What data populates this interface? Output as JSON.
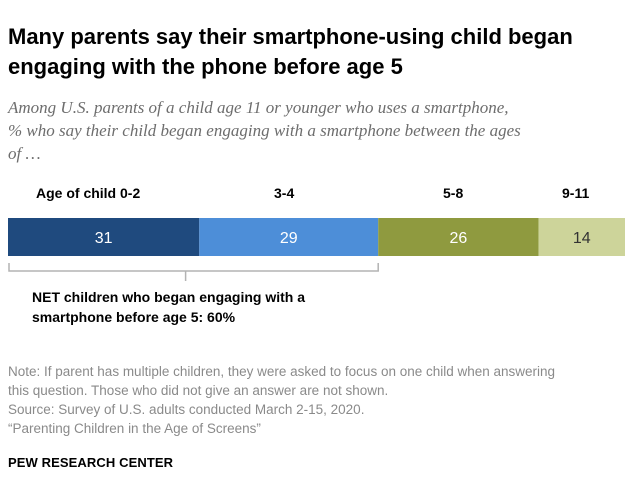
{
  "title_line1": "Many parents say their smartphone-using child began",
  "title_line2": "engaging with the phone before age 5",
  "subtitle_line1": "Among U.S. parents of a child age 11 or younger who uses a smartphone,",
  "subtitle_line2": "% who say their child began engaging with a smartphone between the ages",
  "subtitle_line3": "of …",
  "chart_data": {
    "type": "bar",
    "orientation": "horizontal-stacked",
    "categories": [
      "Age of child 0-2",
      "3-4",
      "5-8",
      "9-11"
    ],
    "values": [
      31,
      29,
      26,
      14
    ],
    "value_labels": [
      "31",
      "29",
      "26",
      "14"
    ],
    "colors": [
      "#1f4a7e",
      "#4d8ed8",
      "#8f9a3f",
      "#cdd49a"
    ],
    "label_colors": [
      "#ffffff",
      "#ffffff",
      "#ffffff",
      "#333333"
    ],
    "bracket_color": "#b3b3b3",
    "net": {
      "span_categories": [
        "Age of child 0-2",
        "3-4"
      ],
      "value": 60,
      "label_line1": "NET children who began engaging with a",
      "label_line2": "smartphone before age 5: 60%"
    }
  },
  "note_line1": "Note: If parent has multiple children, they were asked to focus on one child when answering",
  "note_line2": "this question. Those who did not give an answer are not shown.",
  "source_line": "Source: Survey of U.S. adults conducted March 2-15, 2020.",
  "report_line": "“Parenting Children in the Age of Screens”",
  "brand": "PEW RESEARCH CENTER"
}
